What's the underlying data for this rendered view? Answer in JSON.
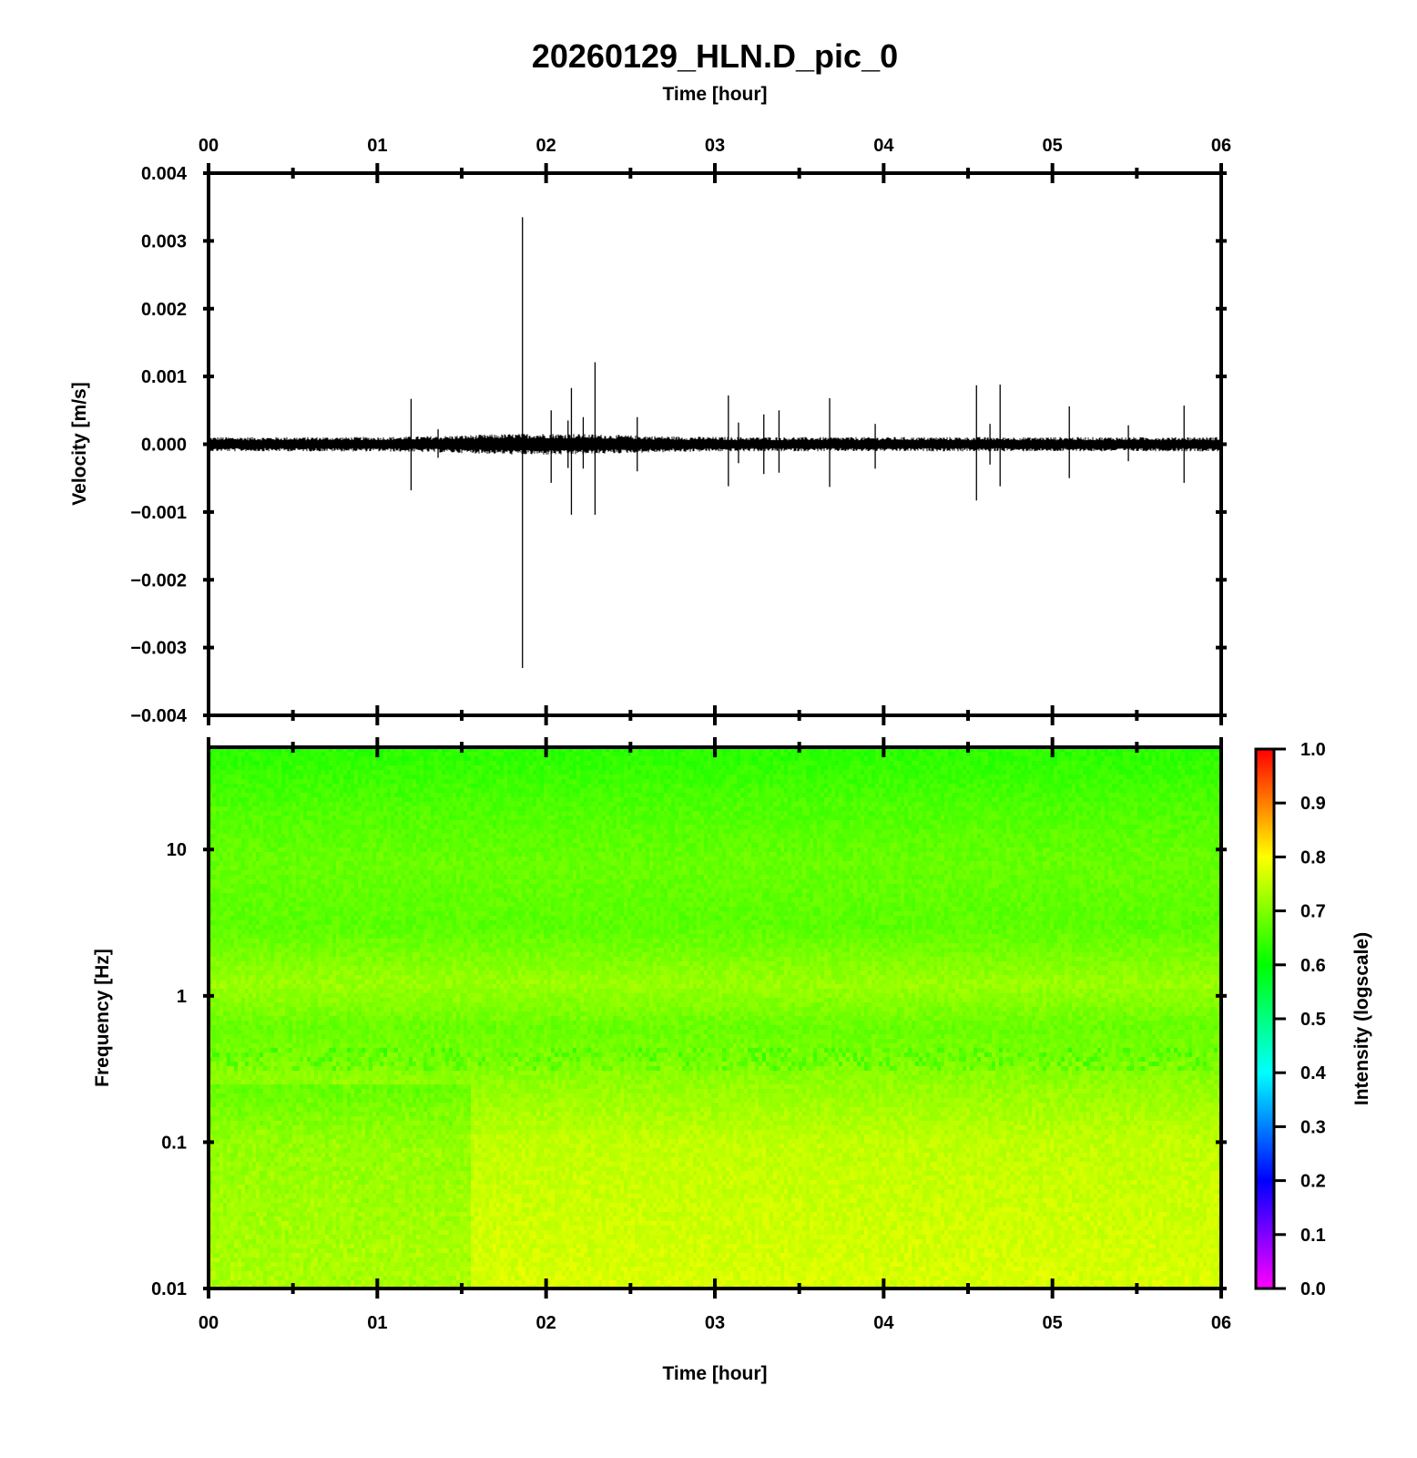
{
  "chart_data": [
    {
      "type": "line",
      "title": "20260129_HLN.D_pic_0",
      "x_top_label": "Time [hour]",
      "ylabel": "Velocity [m/s]",
      "x_range_hours": [
        0,
        6
      ],
      "x_tick_labels": [
        "00",
        "01",
        "02",
        "03",
        "04",
        "05",
        "06"
      ],
      "ylim": [
        -0.004,
        0.004
      ],
      "y_ticks": [
        0.004,
        0.003,
        0.002,
        0.001,
        0.0,
        -0.001,
        -0.002,
        -0.003,
        -0.004
      ],
      "y_tick_labels": [
        "0.004",
        "0.003",
        "0.002",
        "0.001",
        "0.000",
        "−0.001",
        "−0.002",
        "−0.003",
        "−0.004"
      ],
      "background_noise_amplitude": 0.00012,
      "spikes": [
        {
          "t": 1.2,
          "max": 0.00067,
          "min": -0.00068
        },
        {
          "t": 1.36,
          "max": 0.00022,
          "min": -0.0002
        },
        {
          "t": 1.86,
          "max": 0.00335,
          "min": -0.0033
        },
        {
          "t": 2.03,
          "max": 0.0005,
          "min": -0.00057
        },
        {
          "t": 2.13,
          "max": 0.00035,
          "min": -0.00035
        },
        {
          "t": 2.15,
          "max": 0.00083,
          "min": -0.00104
        },
        {
          "t": 2.22,
          "max": 0.0004,
          "min": -0.00036
        },
        {
          "t": 2.29,
          "max": 0.00121,
          "min": -0.00104
        },
        {
          "t": 2.54,
          "max": 0.0004,
          "min": -0.0004
        },
        {
          "t": 3.08,
          "max": 0.00072,
          "min": -0.00062
        },
        {
          "t": 3.14,
          "max": 0.00032,
          "min": -0.00028
        },
        {
          "t": 3.29,
          "max": 0.00044,
          "min": -0.00044
        },
        {
          "t": 3.38,
          "max": 0.0005,
          "min": -0.00042
        },
        {
          "t": 3.68,
          "max": 0.00068,
          "min": -0.00063
        },
        {
          "t": 3.95,
          "max": 0.0003,
          "min": -0.00036
        },
        {
          "t": 4.55,
          "max": 0.00087,
          "min": -0.00083
        },
        {
          "t": 4.63,
          "max": 0.0003,
          "min": -0.0003
        },
        {
          "t": 4.69,
          "max": 0.00088,
          "min": -0.00062
        },
        {
          "t": 5.1,
          "max": 0.00056,
          "min": -0.0005
        },
        {
          "t": 5.45,
          "max": 0.00028,
          "min": -0.00025
        },
        {
          "t": 5.78,
          "max": 0.00057,
          "min": -0.00057
        }
      ]
    },
    {
      "type": "heatmap",
      "xlabel": "Time [hour]",
      "ylabel": "Frequency [Hz]",
      "x_range_hours": [
        0,
        6
      ],
      "x_tick_labels": [
        "00",
        "01",
        "02",
        "03",
        "04",
        "05",
        "06"
      ],
      "y_scale": "log",
      "ylim_hz": [
        0.01,
        50
      ],
      "y_ticks": [
        10,
        1,
        0.1,
        0.01
      ],
      "y_tick_labels": [
        "10",
        "1",
        "0.1",
        "0.01"
      ],
      "colorbar": {
        "label": "Intensity (logscale)",
        "range": [
          0,
          1
        ],
        "tick_labels": [
          "1.0",
          "0.9",
          "0.8",
          "0.7",
          "0.6",
          "0.5",
          "0.4",
          "0.3",
          "0.2",
          "0.1",
          "0.0"
        ],
        "colormap": [
          "#ff00ff",
          "#0000ff",
          "#00ffff",
          "#00ff00",
          "#ffff00",
          "#ff0000"
        ]
      },
      "intensity_profile": [
        {
          "freq_hz": 50,
          "intensity": 0.63
        },
        {
          "freq_hz": 20,
          "intensity": 0.66
        },
        {
          "freq_hz": 8,
          "intensity": 0.68
        },
        {
          "freq_hz": 3,
          "intensity": 0.67
        },
        {
          "freq_hz": 1.2,
          "intensity": 0.72
        },
        {
          "freq_hz": 0.6,
          "intensity": 0.68
        },
        {
          "freq_hz": 0.35,
          "intensity": 0.7
        },
        {
          "freq_hz": 0.1,
          "intensity": 0.75
        },
        {
          "freq_hz": 0.01,
          "intensity": 0.77
        }
      ],
      "low_freq_quiet_until_hours": 1.55
    }
  ]
}
